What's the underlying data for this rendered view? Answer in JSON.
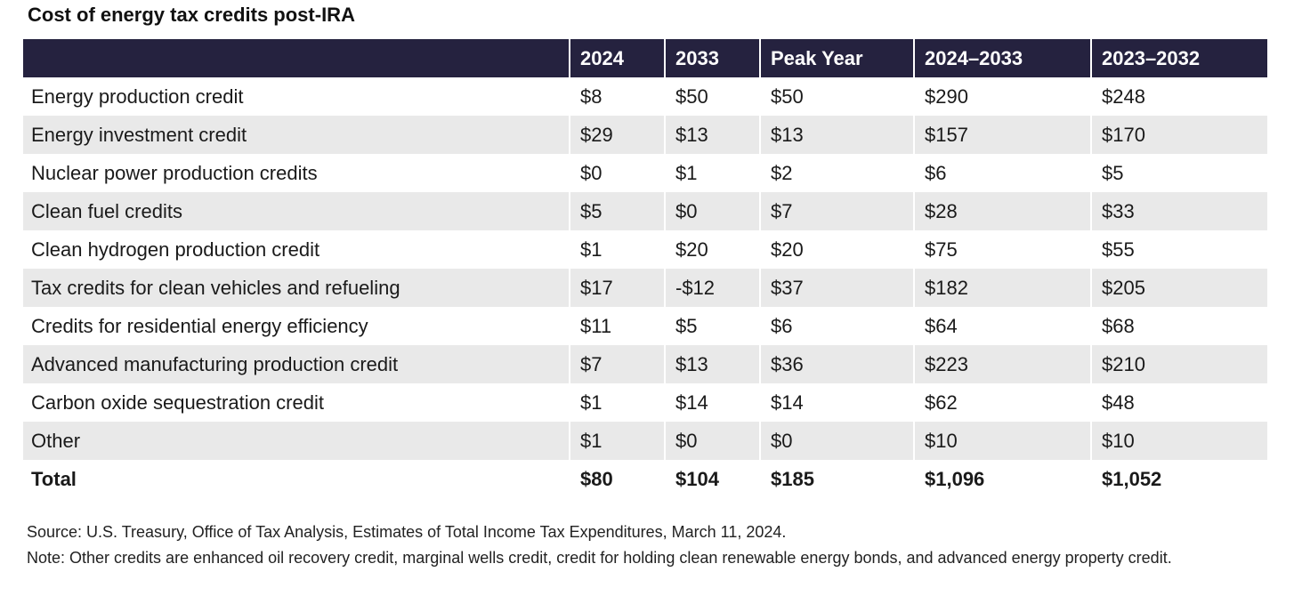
{
  "title": "Cost of energy tax credits post-IRA",
  "chart_data": {
    "type": "table",
    "title": "Cost of energy tax credits post-IRA",
    "columns": [
      "",
      "2024",
      "2033",
      "Peak Year",
      "2024–2033",
      "2023–2032"
    ],
    "rows": [
      [
        "Energy production credit",
        "$8",
        "$50",
        "$50",
        "$290",
        "$248"
      ],
      [
        "Energy investment credit",
        "$29",
        "$13",
        "$13",
        "$157",
        "$170"
      ],
      [
        "Nuclear power production credits",
        "$0",
        "$1",
        "$2",
        "$6",
        "$5"
      ],
      [
        "Clean fuel credits",
        "$5",
        "$0",
        "$7",
        "$28",
        "$33"
      ],
      [
        "Clean hydrogen production credit",
        "$1",
        "$20",
        "$20",
        "$75",
        "$55"
      ],
      [
        "Tax credits for clean vehicles and refueling",
        "$17",
        "-$12",
        "$37",
        "$182",
        "$205"
      ],
      [
        "Credits for residential energy efficiency",
        "$11",
        "$5",
        "$6",
        "$64",
        "$68"
      ],
      [
        "Advanced manufacturing production credit",
        "$7",
        "$13",
        "$36",
        "$223",
        "$210"
      ],
      [
        "Carbon oxide sequestration credit",
        "$1",
        "$14",
        "$14",
        "$62",
        "$48"
      ],
      [
        "Other",
        "$1",
        "$0",
        "$0",
        "$10",
        "$10"
      ]
    ],
    "total": [
      "Total",
      "$80",
      "$104",
      "$185",
      "$1,096",
      "$1,052"
    ]
  },
  "source": "Source: U.S. Treasury, Office of Tax Analysis, Estimates of Total Income Tax Expenditures, March 11, 2024.",
  "note": "Note: Other credits are enhanced oil recovery credit, marginal wells credit, credit for holding clean renewable energy bonds, and advanced energy property credit.",
  "colors": {
    "header_bg": "#25223f",
    "header_text": "#ffffff",
    "stripe": "#e9e9e9"
  }
}
